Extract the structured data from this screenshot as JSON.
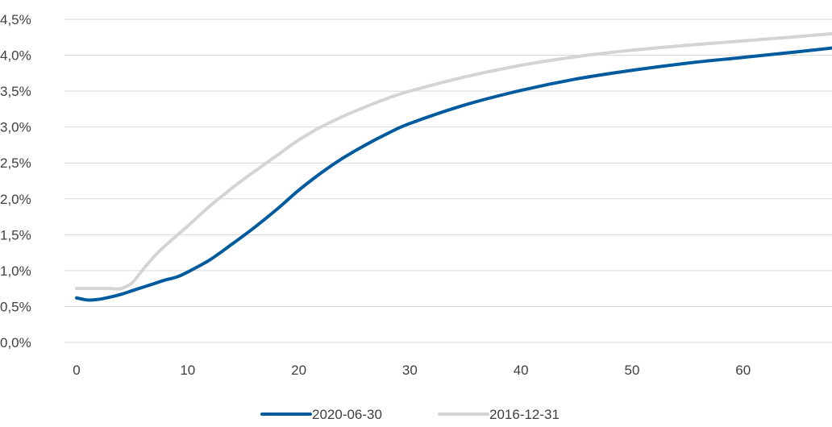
{
  "chart_data": {
    "type": "line",
    "title": "",
    "xlabel": "",
    "ylabel": "",
    "xlim": [
      0,
      68
    ],
    "ylim": [
      0,
      4.5
    ],
    "x_ticks": [
      0,
      10,
      20,
      30,
      40,
      50,
      60
    ],
    "x_tick_labels": [
      "0",
      "10",
      "20",
      "30",
      "40",
      "50",
      "60"
    ],
    "y_ticks": [
      0,
      0.5,
      1,
      1.5,
      2,
      2.5,
      3,
      3.5,
      4,
      4.5
    ],
    "y_tick_labels": [
      "0,0%",
      "0,5%",
      "1,0%",
      "1,5%",
      "2,0%",
      "2,5%",
      "3,0%",
      "3,5%",
      "4,0%",
      "4,5%"
    ],
    "grid": true,
    "legend_position": "bottom",
    "series": [
      {
        "name": "2020-06-30",
        "color": "#005a9e",
        "x": [
          0,
          1,
          2,
          3,
          4,
          5,
          6,
          7,
          8,
          9,
          10,
          12,
          14,
          16,
          18,
          20,
          22,
          24,
          26,
          28,
          30,
          35,
          40,
          45,
          50,
          55,
          60,
          65,
          68
        ],
        "y": [
          0.62,
          0.59,
          0.6,
          0.63,
          0.67,
          0.72,
          0.77,
          0.82,
          0.87,
          0.91,
          0.98,
          1.15,
          1.37,
          1.6,
          1.85,
          2.12,
          2.36,
          2.57,
          2.75,
          2.91,
          3.05,
          3.31,
          3.51,
          3.67,
          3.79,
          3.89,
          3.97,
          4.05,
          4.1
        ]
      },
      {
        "name": "2016-12-31",
        "color": "#d4d4d4",
        "x": [
          0,
          1,
          2,
          3,
          4,
          5,
          6,
          7,
          8,
          10,
          12,
          14,
          16,
          18,
          20,
          22,
          24,
          26,
          28,
          30,
          35,
          40,
          45,
          50,
          55,
          60,
          65,
          68
        ],
        "y": [
          0.75,
          0.75,
          0.75,
          0.75,
          0.75,
          0.83,
          1.02,
          1.2,
          1.35,
          1.62,
          1.9,
          2.15,
          2.38,
          2.6,
          2.82,
          3.0,
          3.15,
          3.28,
          3.4,
          3.5,
          3.7,
          3.86,
          3.98,
          4.07,
          4.14,
          4.2,
          4.26,
          4.3
        ]
      }
    ]
  }
}
